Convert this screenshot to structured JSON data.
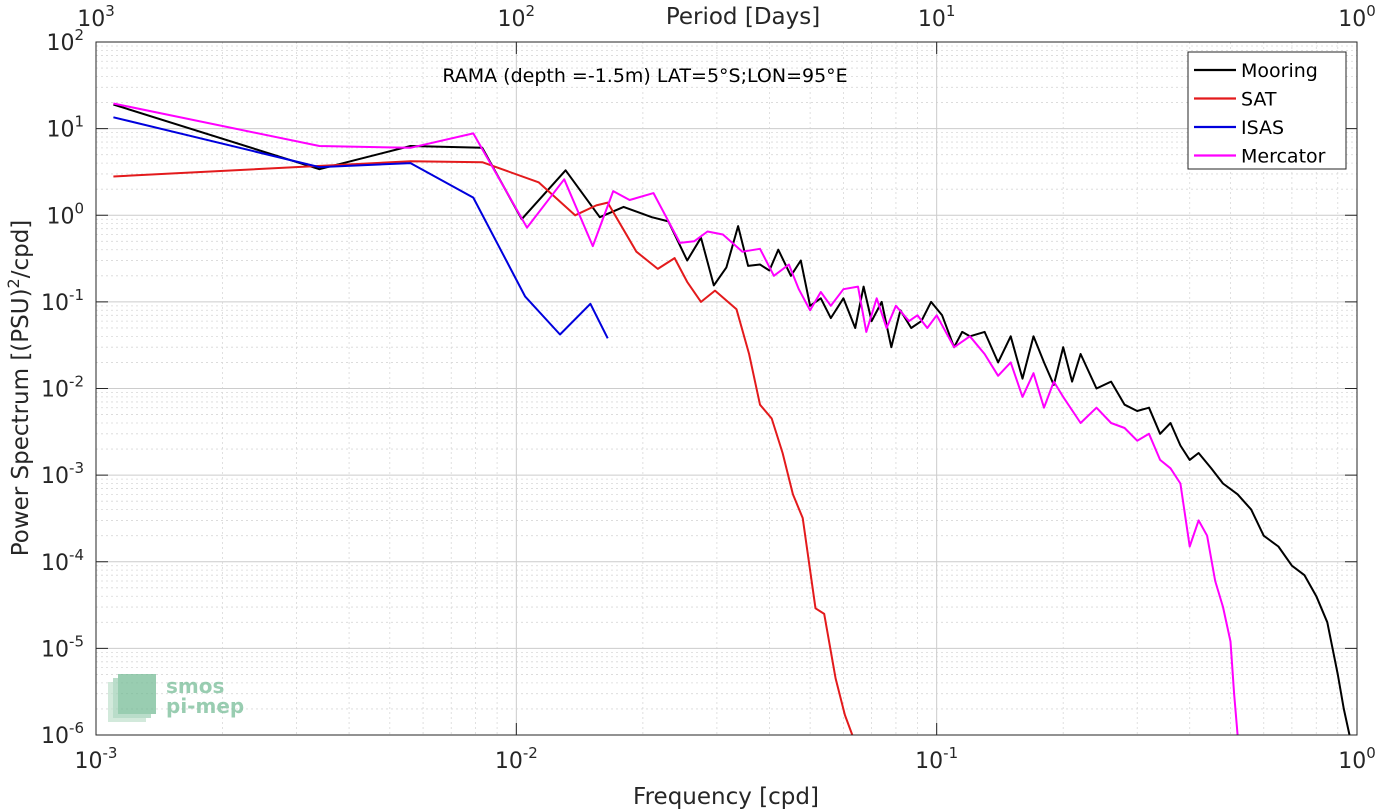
{
  "chart_data": {
    "type": "line",
    "title": "RAMA (depth =-1.5m) LAT=5°S;LON=95°E",
    "xlabel": "Frequency [cpd]",
    "ylabel_prefix": "Power Spectrum [(PSU)",
    "ylabel_sup": "2",
    "ylabel_suffix": "/cpd]",
    "top_xlabel": "Period [Days]",
    "xscale": "log",
    "yscale": "log",
    "xlim": [
      0.001,
      1
    ],
    "ylim": [
      1e-06,
      100
    ],
    "grid": true,
    "legend_position": "top-right",
    "x_ticks": [
      {
        "value": 0.001,
        "base": "10",
        "exp": "-3"
      },
      {
        "value": 0.01,
        "base": "10",
        "exp": "-2"
      },
      {
        "value": 0.1,
        "base": "10",
        "exp": "-1"
      },
      {
        "value": 1,
        "base": "10",
        "exp": "0"
      }
    ],
    "top_ticks": [
      {
        "value": 1000,
        "base": "10",
        "exp": "3"
      },
      {
        "value": 100,
        "base": "10",
        "exp": "2"
      },
      {
        "value": 10,
        "base": "10",
        "exp": "1"
      },
      {
        "value": 1,
        "base": "10",
        "exp": "0"
      }
    ],
    "y_ticks": [
      {
        "value": 1e-06,
        "base": "10",
        "exp": "-6"
      },
      {
        "value": 1e-05,
        "base": "10",
        "exp": "-5"
      },
      {
        "value": 0.0001,
        "base": "10",
        "exp": "-4"
      },
      {
        "value": 0.001,
        "base": "10",
        "exp": "-3"
      },
      {
        "value": 0.01,
        "base": "10",
        "exp": "-2"
      },
      {
        "value": 0.1,
        "base": "10",
        "exp": "-1"
      },
      {
        "value": 1,
        "base": "10",
        "exp": "0"
      },
      {
        "value": 10,
        "base": "10",
        "exp": "1"
      },
      {
        "value": 100,
        "base": "10",
        "exp": "2"
      }
    ],
    "series": [
      {
        "name": "Mooring",
        "color": "#000000",
        "points": [
          [
            0.0011,
            19
          ],
          [
            0.0034,
            3.4
          ],
          [
            0.0056,
            6.3
          ],
          [
            0.0083,
            6.0
          ],
          [
            0.0103,
            0.9
          ],
          [
            0.0131,
            3.3
          ],
          [
            0.0158,
            0.95
          ],
          [
            0.018,
            1.25
          ],
          [
            0.021,
            0.95
          ],
          [
            0.023,
            0.85
          ],
          [
            0.0255,
            0.3
          ],
          [
            0.0275,
            0.55
          ],
          [
            0.0295,
            0.155
          ],
          [
            0.0316,
            0.25
          ],
          [
            0.0337,
            0.75
          ],
          [
            0.0356,
            0.26
          ],
          [
            0.038,
            0.27
          ],
          [
            0.04,
            0.23
          ],
          [
            0.042,
            0.4
          ],
          [
            0.045,
            0.2
          ],
          [
            0.0475,
            0.3
          ],
          [
            0.05,
            0.09
          ],
          [
            0.053,
            0.11
          ],
          [
            0.056,
            0.065
          ],
          [
            0.06,
            0.11
          ],
          [
            0.064,
            0.05
          ],
          [
            0.067,
            0.15
          ],
          [
            0.07,
            0.06
          ],
          [
            0.074,
            0.1
          ],
          [
            0.078,
            0.03
          ],
          [
            0.082,
            0.08
          ],
          [
            0.087,
            0.05
          ],
          [
            0.092,
            0.06
          ],
          [
            0.097,
            0.1
          ],
          [
            0.103,
            0.07
          ],
          [
            0.11,
            0.03
          ],
          [
            0.115,
            0.045
          ],
          [
            0.12,
            0.04
          ],
          [
            0.13,
            0.045
          ],
          [
            0.14,
            0.02
          ],
          [
            0.15,
            0.04
          ],
          [
            0.16,
            0.013
          ],
          [
            0.17,
            0.04
          ],
          [
            0.18,
            0.02
          ],
          [
            0.19,
            0.011
          ],
          [
            0.2,
            0.03
          ],
          [
            0.21,
            0.012
          ],
          [
            0.22,
            0.025
          ],
          [
            0.24,
            0.01
          ],
          [
            0.26,
            0.012
          ],
          [
            0.28,
            0.0065
          ],
          [
            0.3,
            0.0055
          ],
          [
            0.32,
            0.006
          ],
          [
            0.34,
            0.003
          ],
          [
            0.36,
            0.004
          ],
          [
            0.38,
            0.0022
          ],
          [
            0.4,
            0.0015
          ],
          [
            0.42,
            0.0018
          ],
          [
            0.45,
            0.0012
          ],
          [
            0.48,
            0.0008
          ],
          [
            0.52,
            0.0006
          ],
          [
            0.56,
            0.0004
          ],
          [
            0.6,
            0.0002
          ],
          [
            0.65,
            0.00015
          ],
          [
            0.7,
            9e-05
          ],
          [
            0.75,
            7e-05
          ],
          [
            0.8,
            4e-05
          ],
          [
            0.85,
            2e-05
          ],
          [
            0.9,
            5e-06
          ],
          [
            0.93,
            2e-06
          ],
          [
            0.96,
            1e-06
          ]
        ]
      },
      {
        "name": "SAT",
        "color": "#e31a1c",
        "points": [
          [
            0.0011,
            2.8
          ],
          [
            0.0056,
            4.2
          ],
          [
            0.0083,
            4.1
          ],
          [
            0.0113,
            2.4
          ],
          [
            0.0138,
            1.0
          ],
          [
            0.0155,
            1.3
          ],
          [
            0.0165,
            1.4
          ],
          [
            0.0193,
            0.38
          ],
          [
            0.0217,
            0.24
          ],
          [
            0.0238,
            0.32
          ],
          [
            0.0255,
            0.17
          ],
          [
            0.0275,
            0.1
          ],
          [
            0.0297,
            0.135
          ],
          [
            0.0334,
            0.082
          ],
          [
            0.0358,
            0.025
          ],
          [
            0.038,
            0.0065
          ],
          [
            0.0405,
            0.0045
          ],
          [
            0.043,
            0.0018
          ],
          [
            0.0455,
            0.0006
          ],
          [
            0.048,
            0.00032
          ],
          [
            0.0515,
            2.9e-05
          ],
          [
            0.054,
            2.5e-05
          ],
          [
            0.0575,
            4.5e-06
          ],
          [
            0.0605,
            1.7e-06
          ],
          [
            0.063,
            1e-06
          ]
        ]
      },
      {
        "name": "ISAS",
        "color": "#0000dd",
        "points": [
          [
            0.0011,
            13.5
          ],
          [
            0.0034,
            3.6
          ],
          [
            0.0056,
            4.0
          ],
          [
            0.0079,
            1.6
          ],
          [
            0.0105,
            0.115
          ],
          [
            0.0127,
            0.042
          ],
          [
            0.015,
            0.095
          ],
          [
            0.0165,
            0.038
          ]
        ]
      },
      {
        "name": "Mercator",
        "color": "#ff00ff",
        "points": [
          [
            0.0011,
            19.5
          ],
          [
            0.0034,
            6.3
          ],
          [
            0.0056,
            6.0
          ],
          [
            0.0079,
            8.8
          ],
          [
            0.0106,
            0.72
          ],
          [
            0.013,
            2.6
          ],
          [
            0.0152,
            0.44
          ],
          [
            0.017,
            1.9
          ],
          [
            0.0186,
            1.5
          ],
          [
            0.0212,
            1.8
          ],
          [
            0.0245,
            0.48
          ],
          [
            0.0265,
            0.5
          ],
          [
            0.0285,
            0.65
          ],
          [
            0.031,
            0.6
          ],
          [
            0.0345,
            0.38
          ],
          [
            0.038,
            0.41
          ],
          [
            0.041,
            0.2
          ],
          [
            0.0445,
            0.27
          ],
          [
            0.047,
            0.14
          ],
          [
            0.05,
            0.08
          ],
          [
            0.053,
            0.13
          ],
          [
            0.056,
            0.09
          ],
          [
            0.06,
            0.14
          ],
          [
            0.065,
            0.15
          ],
          [
            0.068,
            0.045
          ],
          [
            0.072,
            0.11
          ],
          [
            0.076,
            0.05
          ],
          [
            0.08,
            0.09
          ],
          [
            0.086,
            0.06
          ],
          [
            0.09,
            0.07
          ],
          [
            0.095,
            0.05
          ],
          [
            0.1,
            0.07
          ],
          [
            0.11,
            0.03
          ],
          [
            0.12,
            0.04
          ],
          [
            0.13,
            0.025
          ],
          [
            0.14,
            0.014
          ],
          [
            0.15,
            0.02
          ],
          [
            0.16,
            0.008
          ],
          [
            0.17,
            0.015
          ],
          [
            0.18,
            0.006
          ],
          [
            0.19,
            0.012
          ],
          [
            0.2,
            0.008
          ],
          [
            0.22,
            0.004
          ],
          [
            0.24,
            0.006
          ],
          [
            0.26,
            0.004
          ],
          [
            0.28,
            0.0035
          ],
          [
            0.3,
            0.0025
          ],
          [
            0.32,
            0.003
          ],
          [
            0.34,
            0.0015
          ],
          [
            0.36,
            0.0012
          ],
          [
            0.38,
            0.0008
          ],
          [
            0.4,
            0.00015
          ],
          [
            0.42,
            0.0003
          ],
          [
            0.44,
            0.0002
          ],
          [
            0.46,
            6e-05
          ],
          [
            0.48,
            3e-05
          ],
          [
            0.5,
            1.2e-05
          ],
          [
            0.51,
            3e-06
          ],
          [
            0.52,
            1e-06
          ]
        ]
      }
    ]
  },
  "watermark": {
    "line1": "smos",
    "line2": "pi-mep"
  }
}
